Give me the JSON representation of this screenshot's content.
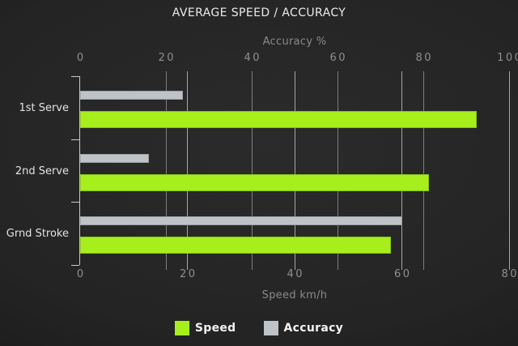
{
  "chart_data": {
    "type": "bar",
    "orientation": "horizontal",
    "title": "AVERAGE SPEED / ACCURACY",
    "categories": [
      "1st Serve",
      "2nd Serve",
      "Grnd Stroke"
    ],
    "series": [
      {
        "name": "Speed",
        "axis": "bottom",
        "color": "#a6ef1c",
        "values": [
          74,
          65,
          58
        ]
      },
      {
        "name": "Accuracy",
        "axis": "top",
        "color": "#bdc3c7",
        "values": [
          24,
          16,
          75
        ]
      }
    ],
    "axes": {
      "top": {
        "label": "Accuracy %",
        "min": 0,
        "max": 100,
        "ticks": [
          0,
          20,
          40,
          60,
          80,
          100
        ]
      },
      "bottom": {
        "label": "Speed km/h",
        "min": 0,
        "max": 80,
        "ticks": [
          0,
          20,
          40,
          60,
          80
        ]
      }
    },
    "legend_position": "bottom",
    "grid": true
  },
  "palette": {
    "speed_bar": "#a6ef1c",
    "accuracy_bar": "#bdc3c7",
    "grid_accuracy": "#7e7e7e",
    "grid_speed": "#a6a6a6",
    "axis_line": "#c9c9c9",
    "muted_text": "#8f8f8f",
    "light_text": "#ebebeb",
    "background": "#232323"
  }
}
